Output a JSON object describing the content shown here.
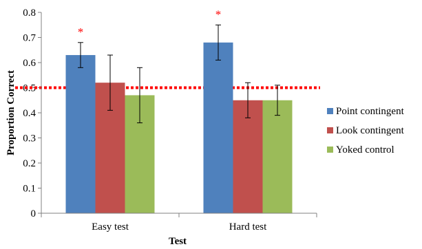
{
  "chart_data": {
    "type": "bar",
    "categories": [
      "Easy test",
      "Hard test"
    ],
    "series": [
      {
        "name": "Point contingent",
        "color": "#4f81bd",
        "values": [
          0.63,
          0.68
        ],
        "err_low": [
          0.58,
          0.61
        ],
        "err_high": [
          0.68,
          0.75
        ]
      },
      {
        "name": "Look contingent",
        "color": "#c0504d",
        "values": [
          0.52,
          0.45
        ],
        "err_low": [
          0.41,
          0.38
        ],
        "err_high": [
          0.63,
          0.52
        ]
      },
      {
        "name": "Yoked control",
        "color": "#9bbb59",
        "values": [
          0.47,
          0.45
        ],
        "err_low": [
          0.36,
          0.39
        ],
        "err_high": [
          0.58,
          0.51
        ]
      }
    ],
    "ylim": [
      0,
      0.8
    ],
    "yticks": [
      "0",
      "0.1",
      "0.2",
      "0.3",
      "0.4",
      "0.5",
      "0.6",
      "0.7",
      "0.8"
    ],
    "xlabel": "Test",
    "ylabel": "Proportion Correct",
    "reference_line": {
      "value": 0.5,
      "color": "#ff0000",
      "style": "dotted"
    },
    "annotations": [
      {
        "text": "*",
        "category": "Easy test",
        "series": "Point contingent",
        "color": "#ff0000"
      },
      {
        "text": "*",
        "category": "Hard test",
        "series": "Point contingent",
        "color": "#ff0000"
      }
    ],
    "legend_position": "right",
    "grid": false
  }
}
